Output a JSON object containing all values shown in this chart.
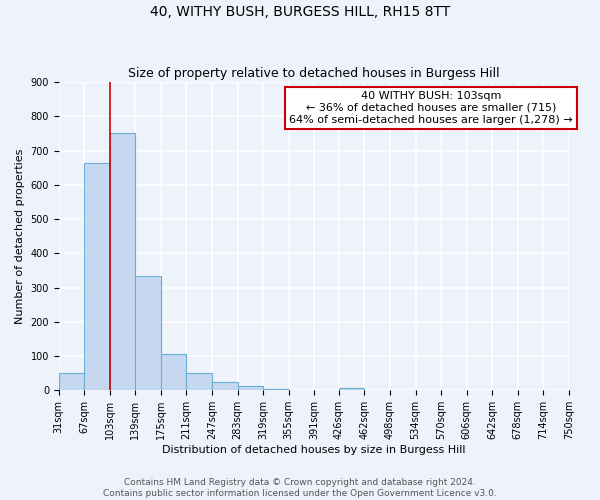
{
  "title": "40, WITHY BUSH, BURGESS HILL, RH15 8TT",
  "subtitle": "Size of property relative to detached houses in Burgess Hill",
  "xlabel": "Distribution of detached houses by size in Burgess Hill",
  "ylabel": "Number of detached properties",
  "bin_edges": [
    31,
    67,
    103,
    139,
    175,
    211,
    247,
    283,
    319,
    355,
    391,
    426,
    462,
    498,
    534,
    570,
    606,
    642,
    678,
    714,
    750
  ],
  "bin_labels": [
    "31sqm",
    "67sqm",
    "103sqm",
    "139sqm",
    "175sqm",
    "211sqm",
    "247sqm",
    "283sqm",
    "319sqm",
    "355sqm",
    "391sqm",
    "426sqm",
    "462sqm",
    "498sqm",
    "534sqm",
    "570sqm",
    "606sqm",
    "642sqm",
    "678sqm",
    "714sqm",
    "750sqm"
  ],
  "counts": [
    50,
    665,
    750,
    335,
    107,
    50,
    25,
    12,
    5,
    0,
    0,
    8,
    0,
    0,
    0,
    0,
    0,
    0,
    0,
    0
  ],
  "bar_color": "#c5d8f0",
  "bar_edge_color": "#6aaed6",
  "red_line_x": 103,
  "annotation_line1": "40 WITHY BUSH: 103sqm",
  "annotation_line2": "← 36% of detached houses are smaller (715)",
  "annotation_line3": "64% of semi-detached houses are larger (1,278) →",
  "annotation_box_color": "#ffffff",
  "annotation_box_edge": "#cc0000",
  "red_line_color": "#cc0000",
  "ylim": [
    0,
    900
  ],
  "yticks": [
    0,
    100,
    200,
    300,
    400,
    500,
    600,
    700,
    800,
    900
  ],
  "footer_line1": "Contains HM Land Registry data © Crown copyright and database right 2024.",
  "footer_line2": "Contains public sector information licensed under the Open Government Licence v3.0.",
  "bg_color": "#eef2fb",
  "grid_color": "#ffffff",
  "title_fontsize": 10,
  "subtitle_fontsize": 9,
  "axis_label_fontsize": 8,
  "tick_fontsize": 7,
  "annotation_fontsize": 8,
  "footer_fontsize": 6.5
}
